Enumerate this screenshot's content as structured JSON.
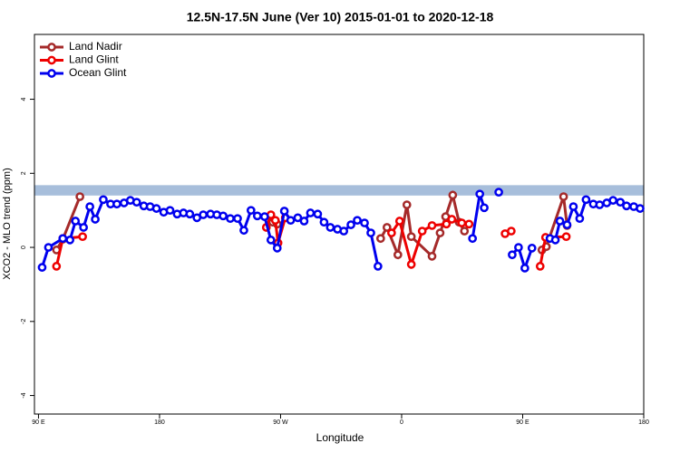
{
  "chart_data": {
    "type": "line",
    "title": "12.5N-17.5N June (Ver 10)   2015-01-01 to 2020-12-18",
    "x_label": "Longitude",
    "y_label": "XCO2 - MLO trend (ppm)",
    "xlim": [
      87,
      540
    ],
    "ylim": [
      -4.5,
      5.75
    ],
    "xticks": [
      {
        "value": 90,
        "label": "90 E"
      },
      180,
      {
        "value": 270,
        "label": "90 W"
      },
      {
        "value": 360,
        "label": "0"
      },
      {
        "value": 450,
        "label": "90 E"
      },
      {
        "value": 540,
        "label": "180"
      }
    ],
    "yticks": [
      -4,
      -2,
      0,
      2,
      4
    ],
    "legend": "top-left",
    "band": {
      "ymin": 1.4,
      "ymax": 1.68,
      "color": "#a7bedb"
    },
    "series": [
      {
        "name": "Land Nadir",
        "color": "#a52a2a",
        "x": [
          103.4,
          108.1,
          120.8,
          null,
          264.1,
          267.5,
          null,
          344.4,
          349.1,
          357.2,
          363.9,
          367.2,
          382.6,
          388.6,
          392.7,
          398.0,
          402.7,
          406.7,
          null,
          464.3,
          467.6,
          480.4,
          483.0
        ],
        "values": [
          -0.07,
          0.22,
          1.37,
          null,
          0.68,
          0.63,
          null,
          0.24,
          0.54,
          -0.2,
          1.15,
          0.29,
          -0.24,
          0.39,
          0.83,
          1.41,
          0.68,
          0.44,
          null,
          -0.07,
          0.02,
          1.37,
          0.59
        ]
      },
      {
        "name": "Land Glint",
        "color": "#ee0000",
        "x": [
          103.4,
          108.1,
          122.8,
          null,
          259.4,
          262.8,
          266.1,
          268.1,
          273.5,
          null,
          352.5,
          358.5,
          367.2,
          375.3,
          382.6,
          393.3,
          397.3,
          404.7,
          410.1,
          null,
          436.9,
          441.5,
          null,
          463.0,
          467.0,
          482.4
        ],
        "values": [
          -0.51,
          0.24,
          0.29,
          null,
          0.54,
          0.88,
          0.73,
          0.12,
          0.8,
          null,
          0.39,
          0.71,
          -0.46,
          0.44,
          0.59,
          0.63,
          0.76,
          0.66,
          0.63,
          null,
          0.37,
          0.44,
          null,
          -0.51,
          0.27,
          0.29
        ]
      },
      {
        "name": "Ocean Glint",
        "color": "#0000ee",
        "x": [
          92.7,
          97.4,
          108.1,
          113.4,
          117.5,
          123.5,
          128.2,
          132.2,
          138.2,
          143.6,
          148.3,
          153.6,
          158.3,
          163.0,
          168.3,
          173.0,
          177.7,
          183.1,
          187.8,
          193.1,
          197.8,
          202.5,
          207.8,
          212.5,
          217.9,
          222.6,
          227.3,
          232.6,
          238.0,
          242.7,
          248.0,
          252.7,
          258.1,
          262.8,
          267.5,
          272.8,
          277.5,
          282.8,
          287.5,
          292.2,
          297.6,
          302.3,
          307.0,
          312.3,
          317.0,
          322.3,
          327.0,
          332.4,
          337.1,
          342.4,
          null,
          412.7,
          418.1,
          421.4,
          null,
          432.2,
          null,
          442.2,
          446.9,
          451.6,
          456.9,
          null,
          470.3,
          474.3,
          477.7,
          483.0,
          487.7,
          492.4,
          497.1,
          502.5,
          507.2,
          512.5,
          517.2,
          522.6,
          527.2,
          532.6,
          537.3
        ],
        "values": [
          -0.54,
          0,
          0.24,
          0.2,
          0.71,
          0.54,
          1.1,
          0.76,
          1.29,
          1.17,
          1.17,
          1.2,
          1.27,
          1.22,
          1.12,
          1.1,
          1.05,
          0.95,
          1.0,
          0.9,
          0.93,
          0.9,
          0.8,
          0.88,
          0.9,
          0.88,
          0.85,
          0.78,
          0.78,
          0.46,
          1.0,
          0.85,
          0.83,
          0.2,
          -0.02,
          0.98,
          0.73,
          0.8,
          0.71,
          0.93,
          0.9,
          0.68,
          0.54,
          0.49,
          0.44,
          0.61,
          0.73,
          0.66,
          0.39,
          -0.51,
          null,
          0.24,
          1.44,
          1.07,
          null,
          1.49,
          null,
          -0.2,
          0,
          -0.56,
          -0.02,
          null,
          0.24,
          0.2,
          0.71,
          0.61,
          1.1,
          0.78,
          1.29,
          1.17,
          1.15,
          1.2,
          1.27,
          1.22,
          1.12,
          1.1,
          1.05
        ]
      }
    ]
  }
}
